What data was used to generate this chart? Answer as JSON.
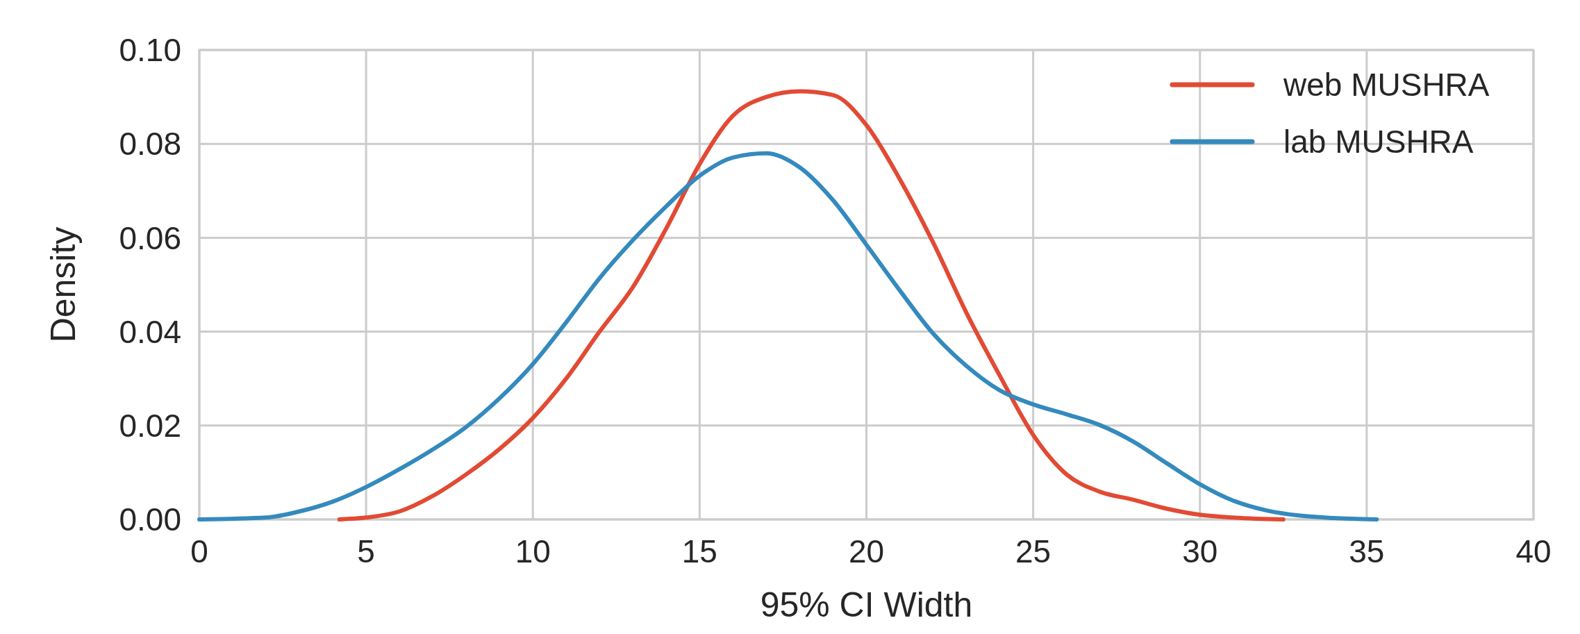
{
  "chart_data": {
    "type": "line",
    "xlabel": "95% CI Width",
    "ylabel": "Density",
    "xlim": [
      0,
      40
    ],
    "ylim": [
      0,
      0.1
    ],
    "xticks": [
      0,
      5,
      10,
      15,
      20,
      25,
      30,
      35,
      40
    ],
    "yticks": [
      {
        "value": 0,
        "label": "0.00"
      },
      {
        "value": 0.02,
        "label": "0.02"
      },
      {
        "value": 0.04,
        "label": "0.04"
      },
      {
        "value": 0.06,
        "label": "0.06"
      },
      {
        "value": 0.08,
        "label": "0.08"
      },
      {
        "value": 0.1,
        "label": "0.10"
      }
    ],
    "grid": true,
    "legend": "top right",
    "line_style": "solid",
    "marker": "none",
    "series": [
      {
        "name": "web MUSHRA",
        "color": "#e24a33",
        "x": [
          4.2,
          5,
          6,
          7,
          8,
          9,
          10,
          11,
          12,
          13,
          14,
          15,
          16,
          17,
          18,
          19,
          20,
          21,
          22,
          23,
          24,
          25,
          26,
          27,
          28,
          29,
          30,
          31,
          32.5
        ],
        "values": [
          0,
          0.0004,
          0.0017,
          0.005,
          0.0096,
          0.015,
          0.0216,
          0.03,
          0.04,
          0.0495,
          0.062,
          0.0757,
          0.086,
          0.09,
          0.0912,
          0.0904,
          0.084,
          0.0725,
          0.059,
          0.044,
          0.0306,
          0.018,
          0.0096,
          0.0059,
          0.0042,
          0.0023,
          0.001,
          0.0004,
          0
        ]
      },
      {
        "name": "lab MUSHRA",
        "color": "#348abd",
        "x": [
          0,
          2,
          3,
          4,
          5,
          6,
          7,
          8,
          9,
          10,
          11,
          12,
          13,
          14,
          15,
          16,
          17,
          18,
          19,
          20,
          21,
          22,
          23,
          24,
          25,
          26,
          27,
          28,
          29,
          30,
          31,
          32,
          33,
          34,
          35.3
        ],
        "values": [
          0,
          0.0004,
          0.0017,
          0.0038,
          0.0069,
          0.0107,
          0.0149,
          0.0197,
          0.0258,
          0.0331,
          0.042,
          0.0514,
          0.0595,
          0.0667,
          0.0732,
          0.0771,
          0.078,
          0.075,
          0.068,
          0.0585,
          0.0488,
          0.0396,
          0.0327,
          0.0275,
          0.0245,
          0.0224,
          0.0201,
          0.0166,
          0.012,
          0.0075,
          0.004,
          0.0019,
          0.0008,
          0.0003,
          0
        ]
      }
    ]
  }
}
